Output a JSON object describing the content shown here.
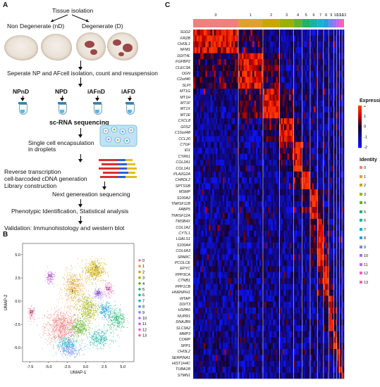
{
  "panels": {
    "a": "A",
    "b": "B",
    "c": "C"
  },
  "panel_a": {
    "tissue_isolation": "Tissue isolation",
    "non_degenerate": "Non Degenerate (nD)",
    "degenerate": "Degenerate (D)",
    "step_separate": "Seperate NP and AFcell isolation, count and resuspension",
    "tubes": [
      "NPnD",
      "NPD",
      "iAFnD",
      "iAFD"
    ],
    "sc_rna": "sc-RNA sequencing",
    "step_encapsulation_1": "Single cell encapsulation",
    "step_encapsulation_2": "in droplets",
    "step_rt_1": "Reverse transcription",
    "step_rt_2": "cell-barcoded cDNA generation",
    "step_rt_3": "Library construction",
    "step_ngs": "Next genereation sequencing",
    "step_phenotypic": "Phenotypic Identification, Statistical analysis",
    "step_validation": "Validation: Immunohistology and western blot"
  },
  "colors": {
    "clusters": [
      "#f08080",
      "#e0a030",
      "#c8a800",
      "#9cb000",
      "#5fb52a",
      "#1fb36a",
      "#1ab3a3",
      "#1ab0d0",
      "#2a9de0",
      "#6f86f0",
      "#a56ef5",
      "#d45fe8",
      "#f060c0",
      "#f56a9a"
    ]
  },
  "chart_data": [
    {
      "type": "scatter",
      "xlabel": "UMAP-1",
      "ylabel": "UMAP-2",
      "xticks": [
        "-7.5",
        "-5.0",
        "-2.5",
        "0.0",
        "2.5",
        "5.0"
      ],
      "yticks": [
        "5.0",
        "2.5",
        "0.0",
        "-2.5",
        "-5.0"
      ],
      "xlim": [
        -8.5,
        6.5
      ],
      "ylim": [
        -6.5,
        6.2
      ],
      "legend_placement": "right",
      "series": [
        {
          "name": "0",
          "centroid": [
            -3.2,
            -2.8
          ],
          "spread": [
            1.9,
            1.5
          ],
          "n": 900
        },
        {
          "name": "1",
          "centroid": [
            -1.6,
            1.4
          ],
          "spread": [
            1.2,
            1.5
          ],
          "n": 520
        },
        {
          "name": "2",
          "centroid": [
            1.2,
            3.3
          ],
          "spread": [
            1.1,
            1.0
          ],
          "n": 460
        },
        {
          "name": "3",
          "centroid": [
            0.2,
            -0.8
          ],
          "spread": [
            1.1,
            1.2
          ],
          "n": 420
        },
        {
          "name": "4",
          "centroid": [
            -0.8,
            -2.8
          ],
          "spread": [
            0.9,
            0.8
          ],
          "n": 300
        },
        {
          "name": "5",
          "centroid": [
            4.2,
            -2.0
          ],
          "spread": [
            1.0,
            1.0
          ],
          "n": 300
        },
        {
          "name": "6",
          "centroid": [
            1.8,
            -4.0
          ],
          "spread": [
            1.4,
            0.8
          ],
          "n": 300
        },
        {
          "name": "7",
          "centroid": [
            -2.5,
            -4.6
          ],
          "spread": [
            1.1,
            0.7
          ],
          "n": 240
        },
        {
          "name": "8",
          "centroid": [
            2.6,
            -1.0
          ],
          "spread": [
            0.7,
            0.7
          ],
          "n": 200
        },
        {
          "name": "9",
          "centroid": [
            -2.0,
            -5.3
          ],
          "spread": [
            1.3,
            0.5
          ],
          "n": 180
        },
        {
          "name": "10",
          "centroid": [
            1.7,
            0.8
          ],
          "spread": [
            0.5,
            0.5
          ],
          "n": 130
        },
        {
          "name": "11",
          "centroid": [
            -4.8,
            2.6
          ],
          "spread": [
            0.5,
            0.6
          ],
          "n": 120
        },
        {
          "name": "12",
          "centroid": [
            3.0,
            1.2
          ],
          "spread": [
            0.6,
            0.6
          ],
          "n": 110
        },
        {
          "name": "13",
          "centroid": [
            -7.3,
            -1.3
          ],
          "spread": [
            0.4,
            0.6
          ],
          "n": 90
        }
      ],
      "annotations": [
        {
          "text": "11",
          "x": -4.8,
          "y": 2.6
        },
        {
          "text": "13",
          "x": -7.3,
          "y": -1.3
        },
        {
          "text": "10",
          "x": 1.7,
          "y": 0.8
        },
        {
          "text": "12",
          "x": 3.0,
          "y": 1.2
        },
        {
          "text": "2",
          "x": 1.4,
          "y": 3.6
        },
        {
          "text": "1",
          "x": -1.8,
          "y": 1.0
        }
      ]
    },
    {
      "type": "heatmap",
      "legend_title": "Expression",
      "legend_ticks": [
        "2",
        "1",
        "0",
        "-1",
        "-2"
      ],
      "vrange": [
        -2,
        2
      ],
      "identity_title": "Identity",
      "clusters": [
        "0",
        "1",
        "2",
        "3",
        "4",
        "5",
        "6",
        "7",
        "8",
        "9",
        "10",
        "11",
        "12",
        "13"
      ],
      "cluster_widths": [
        22,
        12,
        8,
        7,
        4,
        4,
        3.5,
        3,
        2.5,
        2.5,
        1.5,
        1.3,
        1.2,
        1
      ],
      "genes": [
        "SOD2",
        "FRZB",
        "CHI3L1",
        "NFM1",
        "DDIT4L",
        "FGFBP2",
        "CLEC3A",
        "OGN",
        "C2orf40",
        "SLPI",
        "MT1G",
        "MT1H",
        "MT1F",
        "MT1X",
        "MT1E",
        "CXCL8",
        "G0S2",
        "C15orf48",
        "CCL20",
        "CTGF",
        "ID1",
        "CYR61",
        "COL2A1",
        "COL1A1",
        "PLA2G2A",
        "CHRDL2",
        "SPTSSB",
        "MSMP",
        "S100A2",
        "TNRSF11B",
        "FABP5",
        "TNRSF12A",
        "TMSB4X",
        "COL1A2",
        "CYTL1",
        "LGALS1",
        "S100A4",
        "COL6A3",
        "SPARC",
        "PCOLCE",
        "EPYC",
        "PPP3CA",
        "CTNB1",
        "PPP1CB",
        "HNRNPH1",
        "WTAP",
        "DDIT3",
        "HSPA5",
        "NUPR1",
        "DNAJB9",
        "SLC3A2",
        "MMP3",
        "COMP",
        "SPP1",
        "CHI3L2",
        "SERPINA1",
        "HIST1H4C",
        "TUBA1B",
        "STMN1"
      ],
      "gene_marker_cluster": [
        0,
        0,
        0,
        0,
        1,
        1,
        1,
        1,
        1,
        1,
        2,
        2,
        2,
        2,
        2,
        3,
        3,
        3,
        3,
        4,
        4,
        4,
        4,
        4,
        5,
        5,
        5,
        6,
        6,
        6,
        6,
        6,
        7,
        7,
        7,
        7,
        7,
        7,
        7,
        7,
        8,
        8,
        8,
        8,
        8,
        9,
        9,
        9,
        9,
        9,
        9,
        10,
        10,
        10,
        11,
        11,
        12,
        12,
        13
      ]
    }
  ]
}
